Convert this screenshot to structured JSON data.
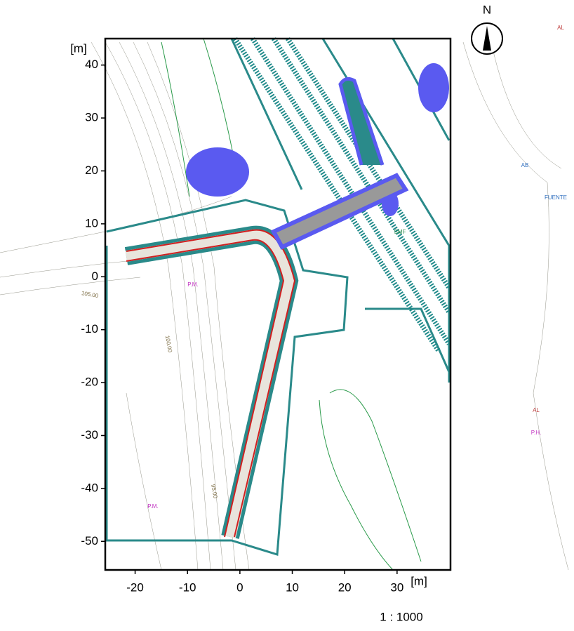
{
  "axes": {
    "x_unit": "[m]",
    "y_unit": "[m]",
    "xlim": [
      -25.7,
      40.2
    ],
    "ylim": [
      -55.4,
      45
    ],
    "xticks": [
      -20,
      -10,
      0,
      10,
      20,
      30
    ],
    "yticks": [
      40,
      30,
      20,
      10,
      0,
      -10,
      -20,
      -30,
      -40,
      -50
    ]
  },
  "scale": "1 : 1000",
  "north": "N",
  "map_labels": [
    "P.M.",
    "P.M.",
    "105.00",
    "100.00",
    "95.00",
    "AL",
    "AL",
    "AB",
    "FUENTE",
    "P.H.",
    "SMF"
  ]
}
